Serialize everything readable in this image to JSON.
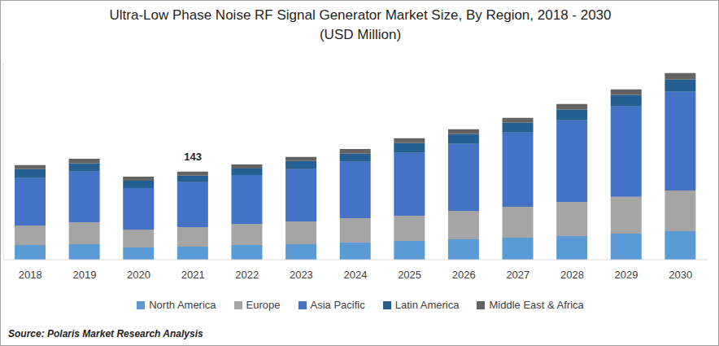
{
  "chart_data": {
    "type": "bar",
    "title": "Ultra-Low Phase Noise RF Signal Generator Market Size, By Region, 2018 - 2030",
    "subtitle": "(USD Million)",
    "source": "Source: Polaris Market Research Analysis",
    "categories": [
      "2018",
      "2019",
      "2020",
      "2021",
      "2022",
      "2023",
      "2024",
      "2025",
      "2026",
      "2027",
      "2028",
      "2029",
      "2030"
    ],
    "series": [
      {
        "name": "North America",
        "color": "#5b9bd5",
        "values": [
          23.8,
          25.2,
          19.9,
          21.2,
          23.8,
          25.2,
          27.8,
          30.5,
          33.1,
          35.7,
          38.4,
          42.4,
          46.3
        ]
      },
      {
        "name": "Europe",
        "color": "#a5a5a5",
        "values": [
          31.8,
          35.7,
          29.1,
          31.8,
          34.4,
          37.1,
          39.7,
          41.0,
          46.3,
          50.3,
          55.6,
          59.6,
          66.2
        ]
      },
      {
        "name": "Asia Pacific",
        "color": "#4472c4",
        "values": [
          76.8,
          82.1,
          67.5,
          72.8,
          79.4,
          84.7,
          91.4,
          101.9,
          108.6,
          120.5,
          132.4,
          147.0,
          160.2
        ]
      },
      {
        "name": "Latin America",
        "color": "#255e91",
        "values": [
          14.6,
          13.2,
          11.9,
          10.6,
          10.6,
          13.2,
          13.2,
          15.9,
          15.9,
          15.9,
          17.2,
          18.5,
          19.9
        ]
      },
      {
        "name": "Middle East & Africa",
        "color": "#636363",
        "values": [
          6.6,
          7.9,
          6.6,
          6.6,
          6.6,
          6.6,
          7.9,
          7.9,
          7.9,
          7.9,
          9.3,
          9.3,
          10.6
        ]
      }
    ],
    "annotations": [
      {
        "category": "2021",
        "value": 143
      }
    ],
    "ylim": [
      0,
      320
    ],
    "stacked": true,
    "grid": false,
    "tick_labels": "x",
    "legend": "bottom"
  }
}
